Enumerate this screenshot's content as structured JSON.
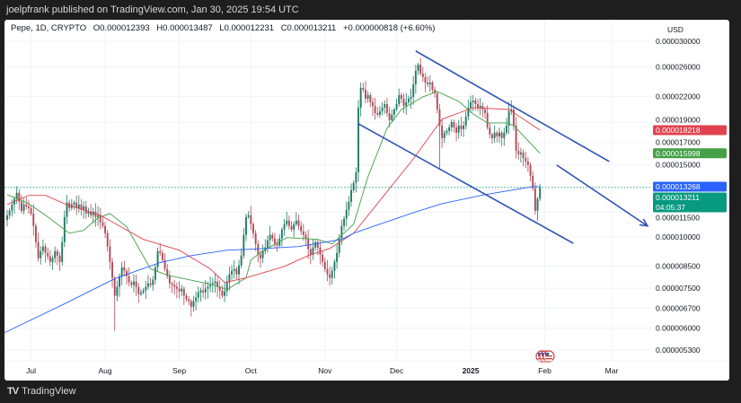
{
  "topbar": {
    "published": "joelpfrank published on TradingView.com, Jan 30, 2025 19:54 UTC"
  },
  "legend": {
    "symbol": "Pepe, 1D, CRYPTO",
    "open": "O0.000012393",
    "high": "H0.000013487",
    "low": "L0.000012231",
    "close": "C0.000013211",
    "change": "+0.000000818 (+6.60%)"
  },
  "footer": {
    "brand": "TradingView",
    "logo_mark": "TV"
  },
  "chart_data": {
    "type": "candlestick",
    "title": "Pepe, 1D, CRYPTO",
    "currency": "USD",
    "y_scale": "log",
    "ylim": [
      4.9e-06,
      3.16e-05
    ],
    "grid": true,
    "colors": {
      "up": "#1f7a64",
      "down": "#b04a58",
      "ma_green": "#43a047",
      "ma_red": "#e0434f",
      "ma_blue": "#2962ff",
      "trendline": "#2f52b5",
      "last_price": "#089981"
    },
    "y_ticks": [
      "0.000030000",
      "0.000026000",
      "0.000022000",
      "0.000019000",
      "0.000017000",
      "0.000015000",
      "0.000011500",
      "0.000010000",
      "0.000008500",
      "0.000007500",
      "0.000006700",
      "0.000006000",
      "0.000005300"
    ],
    "x_ticks": [
      {
        "label": "Jul",
        "index": 10,
        "bold": false
      },
      {
        "label": "Aug",
        "index": 41,
        "bold": false
      },
      {
        "label": "Sep",
        "index": 72,
        "bold": false
      },
      {
        "label": "Oct",
        "index": 102,
        "bold": false
      },
      {
        "label": "Nov",
        "index": 133,
        "bold": false
      },
      {
        "label": "Dec",
        "index": 163,
        "bold": false
      },
      {
        "label": "2025",
        "index": 194,
        "bold": true
      },
      {
        "label": "Feb",
        "index": 225,
        "bold": false
      },
      {
        "label": "Mar",
        "index": 253,
        "bold": false
      }
    ],
    "closes": [
      1.13e-05,
      1.159e-05,
      1.2e-05,
      1.238e-05,
      1.282e-05,
      1.219e-05,
      1.159e-05,
      1.2e-05,
      1.188e-05,
      1.176e-05,
      1.141e-05,
      1.064e-05,
      9.72e-06,
      8.88e-06,
      9.24e-06,
      9.48e-06,
      9.15e-06,
      8.97e-06,
      8.7e-06,
      8.88e-06,
      9.24e-06,
      9.01e-06,
      8.7e-06,
      9.72e-06,
      1.119e-05,
      1.213e-05,
      1.176e-05,
      1.2e-05,
      1.213e-05,
      1.176e-05,
      1.2e-05,
      1.165e-05,
      1.188e-05,
      1.141e-05,
      1.153e-05,
      1.13e-05,
      1.153e-05,
      1.119e-05,
      1.13e-05,
      1.086e-05,
      1.064e-05,
      1.022e-05,
      9.48e-06,
      8.7e-06,
      7.95e-06,
      7.19e-06,
      7.56e-06,
      8.03e-06,
      8.44e-06,
      8.27e-06,
      8.03e-06,
      7.75e-06,
      7.64e-06,
      7.79e-06,
      7.56e-06,
      7.26e-06,
      7.33e-06,
      7.41e-06,
      7.56e-06,
      7.71e-06,
      7.64e-06,
      7.87e-06,
      8.44e-06,
      9.24e-06,
      9.15e-06,
      8.79e-06,
      8.36e-06,
      8.03e-06,
      7.71e-06,
      7.64e-06,
      7.56e-06,
      7.48e-06,
      7.37e-06,
      7.48e-06,
      7.19e-06,
      7.05e-06,
      6.98e-06,
      6.76e-06,
      6.98e-06,
      7.12e-06,
      7.33e-06,
      7.41e-06,
      7.33e-06,
      7.48e-06,
      7.56e-06,
      7.64e-06,
      7.71e-06,
      7.79e-06,
      7.56e-06,
      7.41e-06,
      7.19e-06,
      7.37e-06,
      7.75e-06,
      8.11e-06,
      8.27e-06,
      8.36e-06,
      8.11e-06,
      8.53e-06,
      9.01e-06,
      1.012e-05,
      1.119e-05,
      1.13e-05,
      1.075e-05,
      1.022e-05,
      9.62e-06,
      9.06e-06,
      8.88e-06,
      9.24e-06,
      9.43e-06,
      9.82e-06,
      1.012e-05,
      9.92e-06,
      9.62e-06,
      9.53e-06,
      9.92e-06,
      1.043e-05,
      1.075e-05,
      1.097e-05,
      1.064e-05,
      1.043e-05,
      1.075e-05,
      1.097e-05,
      1.064e-05,
      1.032e-05,
      1.012e-05,
      9.92e-06,
      9.34e-06,
      9.06e-06,
      9.43e-06,
      9.72e-06,
      9.43e-06,
      9.06e-06,
      8.7e-06,
      8.36e-06,
      8.11e-06,
      7.95e-06,
      8.27e-06,
      8.7e-06,
      9.15e-06,
      9.92e-06,
      1.064e-05,
      1.108e-05,
      1.165e-05,
      1.219e-05,
      1.301e-05,
      1.355e-05,
      1.439e-05,
      2.067e-05,
      2.309e-05,
      2.286e-05,
      2.174e-05,
      2.218e-05,
      2.131e-05,
      2.088e-05,
      2.006e-05,
      1.986e-05,
      2.026e-05,
      2.067e-05,
      2.109e-05,
      2.006e-05,
      1.927e-05,
      1.986e-05,
      2.046e-05,
      2.109e-05,
      2.218e-05,
      2.174e-05,
      2.088e-05,
      2.131e-05,
      2.174e-05,
      2.196e-05,
      2.356e-05,
      2.541e-05,
      2.631e-05,
      2.503e-05,
      2.453e-05,
      2.38e-05,
      2.356e-05,
      2.38e-05,
      2.286e-05,
      2.24e-05,
      2.046e-05,
      1.869e-05,
      1.742e-05,
      1.796e-05,
      1.814e-05,
      1.85e-05,
      1.907e-05,
      1.85e-05,
      1.796e-05,
      1.869e-05,
      1.832e-05,
      1.869e-05,
      1.966e-05,
      2.067e-05,
      2.131e-05,
      2.152e-05,
      2.109e-05,
      2.067e-05,
      2.088e-05,
      2.046e-05,
      2.006e-05,
      1.85e-05,
      1.778e-05,
      1.742e-05,
      1.796e-05,
      1.76e-05,
      1.796e-05,
      1.742e-05,
      1.796e-05,
      1.869e-05,
      2.026e-05,
      2.046e-05,
      1.869e-05,
      1.623e-05,
      1.591e-05,
      1.607e-05,
      1.559e-05,
      1.528e-05,
      1.498e-05,
      1.41e-05,
      1.314e-05,
      1.159e-05,
      1.2393e-05,
      1.3211e-05
    ],
    "last_candle": {
      "open": 1.2393e-05,
      "high": 1.3487e-05,
      "low": 1.2231e-05,
      "close": 1.3211e-05
    },
    "moving_averages": [
      {
        "color_key": "ma_green",
        "points": [
          [
            0,
            1.269e-05
          ],
          [
            9,
            1.206e-05
          ],
          [
            16,
            1.13e-05
          ],
          [
            26,
            1.022e-05
          ],
          [
            32,
            1.038e-05
          ],
          [
            38,
            1.114e-05
          ],
          [
            43,
            1.141e-05
          ],
          [
            50,
            1.059e-05
          ],
          [
            60,
            8.36e-06
          ],
          [
            67,
            8.07e-06
          ],
          [
            85,
            7.68e-06
          ],
          [
            92,
            7.45e-06
          ],
          [
            100,
            7.95e-06
          ],
          [
            102,
            8.79e-06
          ],
          [
            107,
            9.24e-06
          ],
          [
            117,
            9.97e-06
          ],
          [
            130,
            9.87e-06
          ],
          [
            136,
            9.62e-06
          ],
          [
            145,
            1.075e-05
          ],
          [
            151,
            1.403e-05
          ],
          [
            159,
            1.841e-05
          ],
          [
            165,
            2.046e-05
          ],
          [
            174,
            2.196e-05
          ],
          [
            180,
            2.263e-05
          ],
          [
            189,
            2.142e-05
          ],
          [
            195,
            1.996e-05
          ],
          [
            201,
            1.898e-05
          ],
          [
            209,
            1.898e-05
          ],
          [
            212,
            1.869e-05
          ],
          [
            223,
            1.5998e-05
          ]
        ]
      },
      {
        "color_key": "ma_red",
        "points": [
          [
            0,
            1.2e-05
          ],
          [
            9,
            1.263e-05
          ],
          [
            16,
            1.263e-05
          ],
          [
            24,
            1.206e-05
          ],
          [
            39,
            1.13e-05
          ],
          [
            57,
            9.87e-06
          ],
          [
            72,
            9.29e-06
          ],
          [
            85,
            8.36e-06
          ],
          [
            91,
            7.75e-06
          ],
          [
            100,
            7.95e-06
          ],
          [
            116,
            8.48e-06
          ],
          [
            126,
            9.01e-06
          ],
          [
            135,
            9.38e-06
          ],
          [
            145,
            1.022e-05
          ],
          [
            158,
            1.269e-05
          ],
          [
            170,
            1.551e-05
          ],
          [
            182,
            1.936e-05
          ],
          [
            195,
            2.067e-05
          ],
          [
            210,
            2.046e-05
          ],
          [
            223,
            1.8218e-05
          ]
        ]
      },
      {
        "color_key": "ma_blue",
        "points": [
          [
            -1,
            5.85e-06
          ],
          [
            23,
            6.83e-06
          ],
          [
            45,
            7.91e-06
          ],
          [
            64,
            8.66e-06
          ],
          [
            77,
            9.01e-06
          ],
          [
            92,
            9.29e-06
          ],
          [
            103,
            9.34e-06
          ],
          [
            122,
            9.48e-06
          ],
          [
            140,
            9.87e-06
          ],
          [
            145,
            1.022e-05
          ],
          [
            170,
            1.147e-05
          ],
          [
            182,
            1.206e-05
          ],
          [
            200,
            1.269e-05
          ],
          [
            220,
            1.327e-05
          ],
          [
            223,
            1.3268e-05
          ]
        ]
      }
    ],
    "price_labels": [
      {
        "text": "0.000018218",
        "value": 1.8218e-05,
        "color_key": "ma_red"
      },
      {
        "text": "0.000015998",
        "value": 1.5998e-05,
        "color_key": "ma_green"
      },
      {
        "text": "0.000013268",
        "value": 1.3268e-05,
        "color_key": "ma_blue"
      },
      {
        "text": "0.000013211",
        "value": 1.3211e-05,
        "color_key": "last_price",
        "countdown": "04:05:37"
      }
    ],
    "trendlines": [
      {
        "name": "channel-upper",
        "from": [
          171,
          2.84e-05
        ],
        "to": [
          252,
          1.528e-05
        ],
        "arrow": false
      },
      {
        "name": "channel-lower",
        "from": [
          147,
          1.888e-05
        ],
        "to": [
          237,
          9.65e-06
        ],
        "arrow": false
      },
      {
        "name": "projection-arrow",
        "from": [
          230,
          1.498e-05
        ],
        "to": [
          268,
          1.064e-05
        ],
        "arrow": true
      }
    ],
    "events": [
      {
        "icon": "us-flag-icon"
      },
      {
        "icon": "us-flag-icon"
      },
      {
        "icon": "us-flag-icon"
      }
    ]
  }
}
